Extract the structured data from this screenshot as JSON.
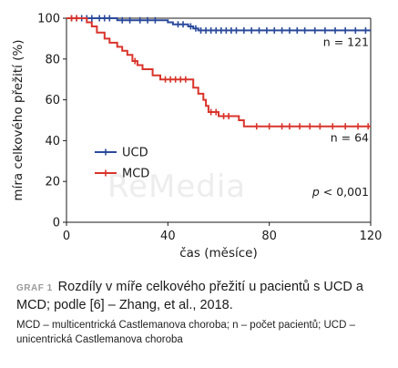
{
  "chart_data": {
    "type": "line",
    "step": true,
    "xlabel": "čas (měsíce)",
    "ylabel": "míra celkového přežití (%)",
    "xlim": [
      0,
      120
    ],
    "ylim": [
      0,
      100
    ],
    "xticks": [
      0,
      40,
      80,
      120
    ],
    "yticks": [
      0,
      20,
      40,
      60,
      80,
      100
    ],
    "legend_position": "lower-left",
    "annotations": [
      "n = 121",
      "n = 64",
      "p < 0,001"
    ],
    "series": [
      {
        "name": "UCD",
        "color": "#2b4a9b",
        "n_label": "n = 121",
        "steps": [
          [
            0,
            100
          ],
          [
            20,
            100
          ],
          [
            20,
            99
          ],
          [
            40,
            99
          ],
          [
            40,
            98
          ],
          [
            42,
            98
          ],
          [
            42,
            97
          ],
          [
            48,
            97
          ],
          [
            48,
            96
          ],
          [
            50,
            96
          ],
          [
            50,
            95
          ],
          [
            52,
            95
          ],
          [
            52,
            94
          ],
          [
            120,
            94
          ]
        ],
        "censored": [
          [
            2,
            100
          ],
          [
            4,
            100
          ],
          [
            6,
            100
          ],
          [
            8,
            100
          ],
          [
            10,
            100
          ],
          [
            13,
            100
          ],
          [
            15,
            100
          ],
          [
            17,
            100
          ],
          [
            22,
            99
          ],
          [
            25,
            99
          ],
          [
            29,
            99
          ],
          [
            32,
            99
          ],
          [
            35,
            99
          ],
          [
            44,
            97
          ],
          [
            46,
            97
          ],
          [
            49,
            96
          ],
          [
            51,
            95
          ],
          [
            53,
            94
          ],
          [
            55,
            94
          ],
          [
            57,
            94
          ],
          [
            59,
            94
          ],
          [
            61,
            94
          ],
          [
            63,
            94
          ],
          [
            65,
            94
          ],
          [
            67,
            94
          ],
          [
            70,
            94
          ],
          [
            73,
            94
          ],
          [
            76,
            94
          ],
          [
            79,
            94
          ],
          [
            82,
            94
          ],
          [
            85,
            94
          ],
          [
            88,
            94
          ],
          [
            91,
            94
          ],
          [
            94,
            94
          ],
          [
            98,
            94
          ],
          [
            102,
            94
          ],
          [
            106,
            94
          ],
          [
            110,
            94
          ],
          [
            114,
            94
          ],
          [
            118,
            94
          ]
        ]
      },
      {
        "name": "MCD",
        "color": "#d9342b",
        "n_label": "n = 64",
        "steps": [
          [
            0,
            100
          ],
          [
            8,
            100
          ],
          [
            8,
            98
          ],
          [
            10,
            98
          ],
          [
            10,
            96
          ],
          [
            12,
            96
          ],
          [
            12,
            93
          ],
          [
            15,
            93
          ],
          [
            15,
            90
          ],
          [
            17,
            90
          ],
          [
            17,
            88
          ],
          [
            20,
            88
          ],
          [
            20,
            86
          ],
          [
            22,
            86
          ],
          [
            22,
            84
          ],
          [
            24,
            84
          ],
          [
            24,
            82
          ],
          [
            26,
            82
          ],
          [
            26,
            79
          ],
          [
            28,
            79
          ],
          [
            28,
            77
          ],
          [
            30,
            77
          ],
          [
            30,
            75
          ],
          [
            34,
            75
          ],
          [
            34,
            72
          ],
          [
            37,
            72
          ],
          [
            37,
            70
          ],
          [
            50,
            70
          ],
          [
            50,
            66
          ],
          [
            52,
            66
          ],
          [
            52,
            63
          ],
          [
            54,
            63
          ],
          [
            54,
            60
          ],
          [
            55,
            60
          ],
          [
            55,
            57
          ],
          [
            56,
            57
          ],
          [
            56,
            54
          ],
          [
            60,
            54
          ],
          [
            60,
            52
          ],
          [
            68,
            52
          ],
          [
            68,
            50
          ],
          [
            70,
            50
          ],
          [
            70,
            47
          ],
          [
            120,
            47
          ]
        ],
        "censored": [
          [
            2,
            100
          ],
          [
            4,
            100
          ],
          [
            27,
            79
          ],
          [
            39,
            70
          ],
          [
            41,
            70
          ],
          [
            43,
            70
          ],
          [
            45,
            70
          ],
          [
            47,
            70
          ],
          [
            57,
            54
          ],
          [
            59,
            54
          ],
          [
            62,
            52
          ],
          [
            64,
            52
          ],
          [
            75,
            47
          ],
          [
            80,
            47
          ],
          [
            85,
            47
          ],
          [
            88,
            47
          ],
          [
            92,
            47
          ],
          [
            96,
            47
          ],
          [
            100,
            47
          ],
          [
            105,
            47
          ],
          [
            110,
            47
          ],
          [
            115,
            47
          ],
          [
            119,
            47
          ]
        ]
      }
    ]
  },
  "watermark": "ReMedia",
  "caption": {
    "label": "GRAF 1",
    "title": "Rozdíly v míře celkového přežití u pacientů s UCD a MCD; podle [6] – Zhang, et al., 2018.",
    "note": "MCD – multicentrická Castlemanova choroba; n – počet pacientů; UCD – unicentrická Castlemanova choroba"
  }
}
